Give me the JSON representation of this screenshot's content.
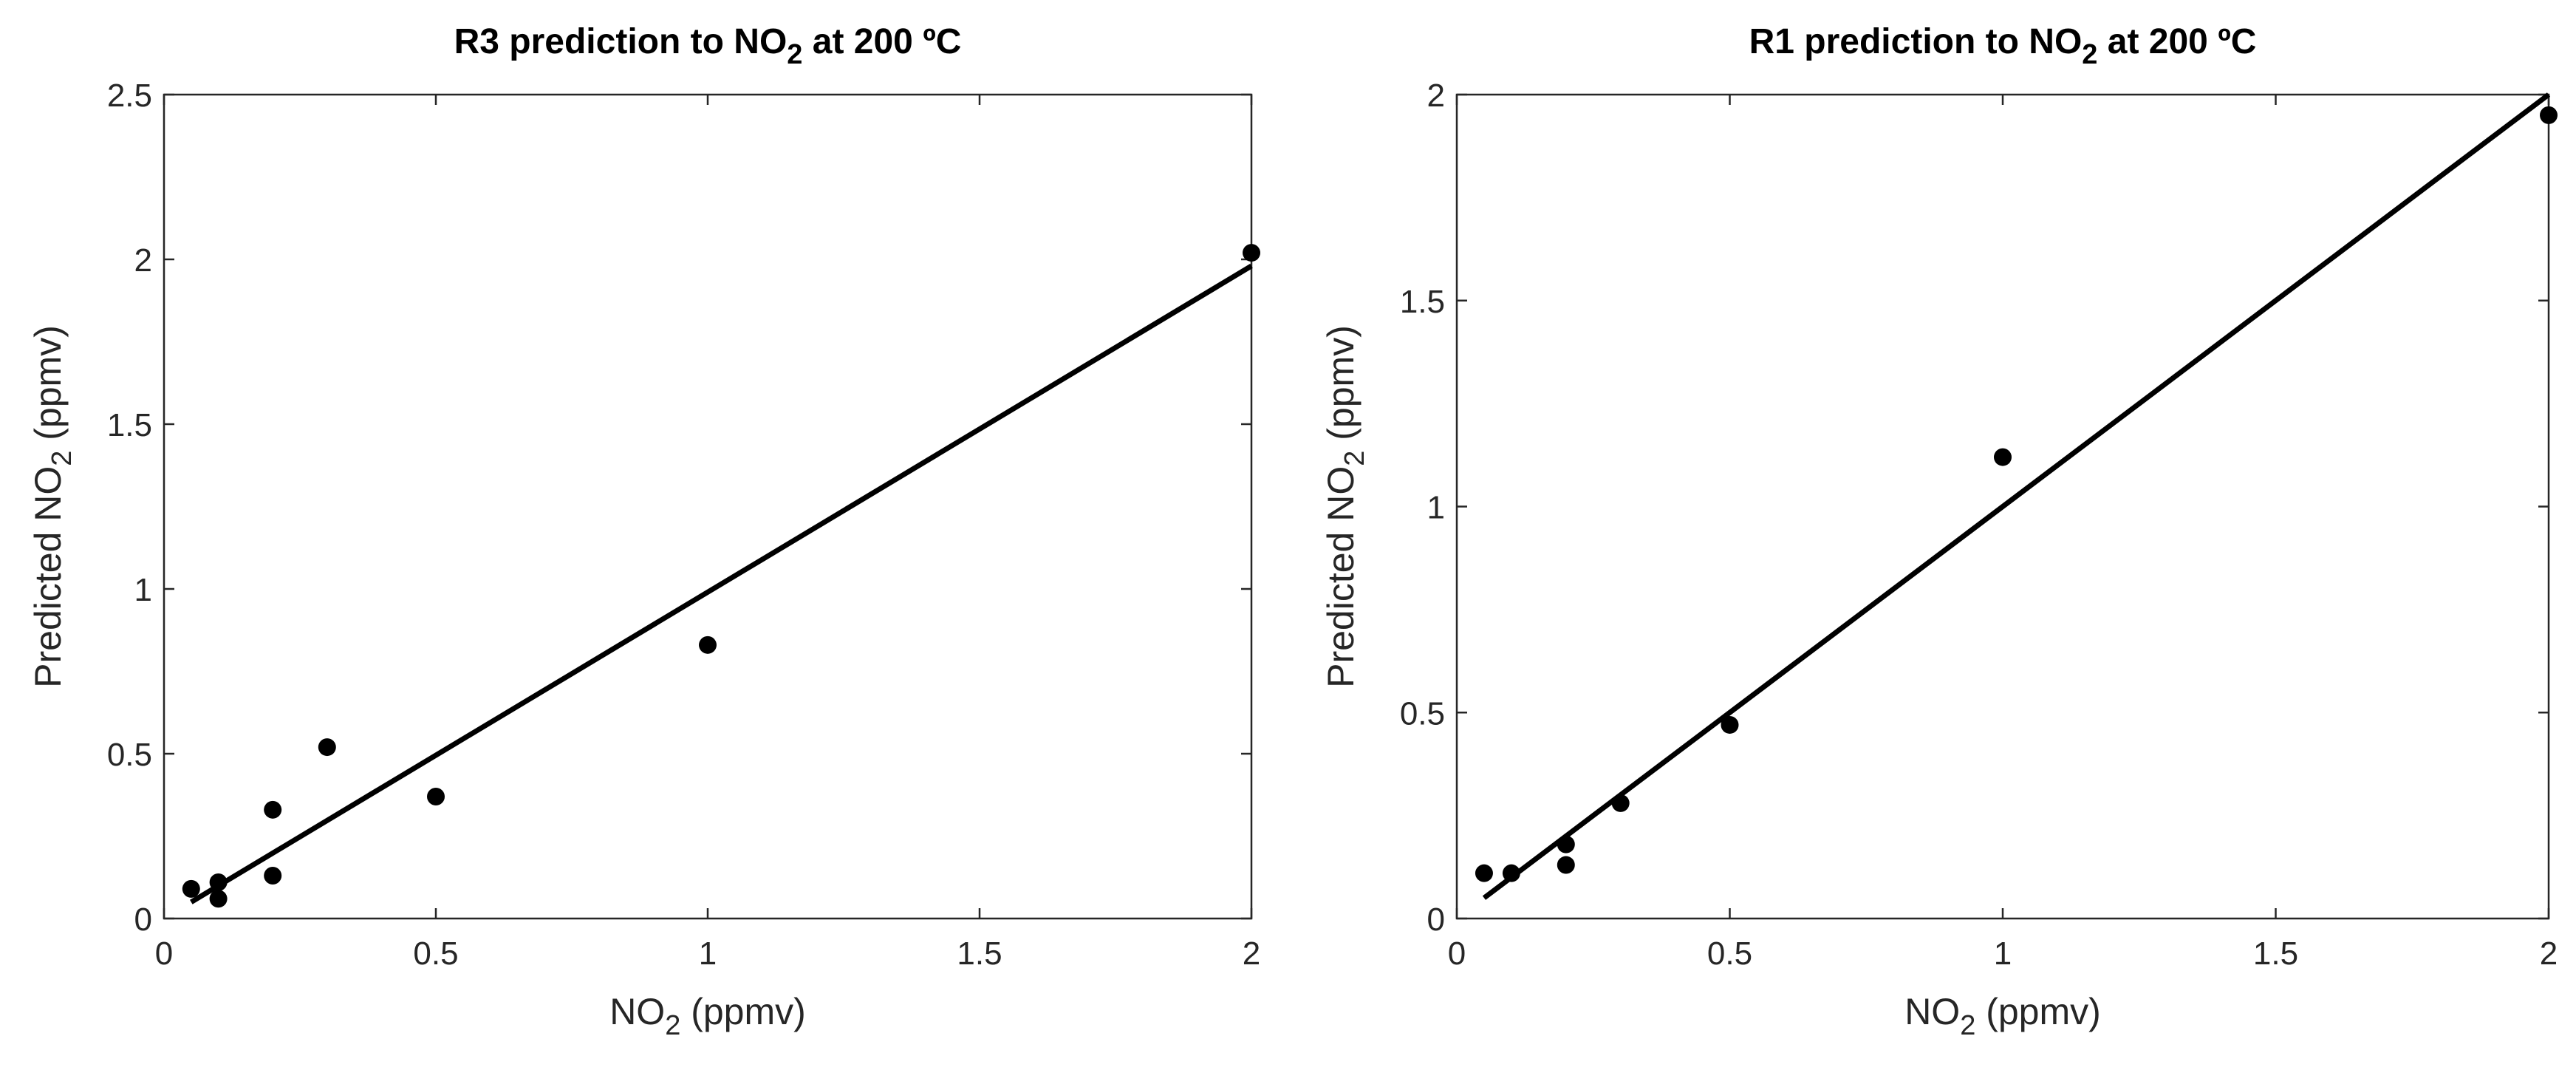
{
  "chart_data": [
    {
      "type": "scatter",
      "title": {
        "main": "R3 prediction to NO",
        "sub": "2",
        "tail": " at 200 ºC"
      },
      "xlabel": {
        "main": "NO",
        "sub": "2",
        "tail": " (ppmv)"
      },
      "ylabel": {
        "main": "Predicted NO",
        "sub": "2",
        "tail": " (ppmv)"
      },
      "xlim": [
        0,
        2
      ],
      "ylim": [
        0,
        2.5
      ],
      "xticks": [
        0,
        0.5,
        1,
        1.5,
        2
      ],
      "xtick_labels": [
        "0",
        "0.5",
        "1",
        "1.5",
        "2"
      ],
      "yticks": [
        0,
        0.5,
        1,
        1.5,
        2,
        2.5
      ],
      "ytick_labels": [
        "0",
        "0.5",
        "1",
        "1.5",
        "2",
        "2.5"
      ],
      "points": [
        {
          "x": 0.05,
          "y": 0.09
        },
        {
          "x": 0.1,
          "y": 0.11
        },
        {
          "x": 0.1,
          "y": 0.06
        },
        {
          "x": 0.2,
          "y": 0.33
        },
        {
          "x": 0.2,
          "y": 0.13
        },
        {
          "x": 0.3,
          "y": 0.52
        },
        {
          "x": 0.5,
          "y": 0.37
        },
        {
          "x": 1.0,
          "y": 0.83
        },
        {
          "x": 2.0,
          "y": 2.02
        }
      ],
      "fit_line": {
        "x": [
          0.05,
          2.0
        ],
        "y": [
          0.05,
          1.98
        ]
      }
    },
    {
      "type": "scatter",
      "title": {
        "main": "R1 prediction to NO",
        "sub": "2",
        "tail": " at 200 ºC"
      },
      "xlabel": {
        "main": "NO",
        "sub": "2",
        "tail": " (ppmv)"
      },
      "ylabel": {
        "main": "Predicted NO",
        "sub": "2",
        "tail": " (ppmv)"
      },
      "xlim": [
        0,
        2
      ],
      "ylim": [
        0,
        2
      ],
      "xticks": [
        0,
        0.5,
        1,
        1.5,
        2
      ],
      "xtick_labels": [
        "0",
        "0.5",
        "1",
        "1.5",
        "2"
      ],
      "yticks": [
        0,
        0.5,
        1,
        1.5,
        2
      ],
      "ytick_labels": [
        "0",
        "0.5",
        "1",
        "1.5",
        "2"
      ],
      "points": [
        {
          "x": 0.05,
          "y": 0.11
        },
        {
          "x": 0.1,
          "y": 0.11
        },
        {
          "x": 0.2,
          "y": 0.18
        },
        {
          "x": 0.2,
          "y": 0.13
        },
        {
          "x": 0.3,
          "y": 0.28
        },
        {
          "x": 0.5,
          "y": 0.47
        },
        {
          "x": 1.0,
          "y": 1.12
        },
        {
          "x": 2.0,
          "y": 1.95
        }
      ],
      "fit_line": {
        "x": [
          0.05,
          2.0
        ],
        "y": [
          0.05,
          2.0
        ]
      }
    }
  ]
}
